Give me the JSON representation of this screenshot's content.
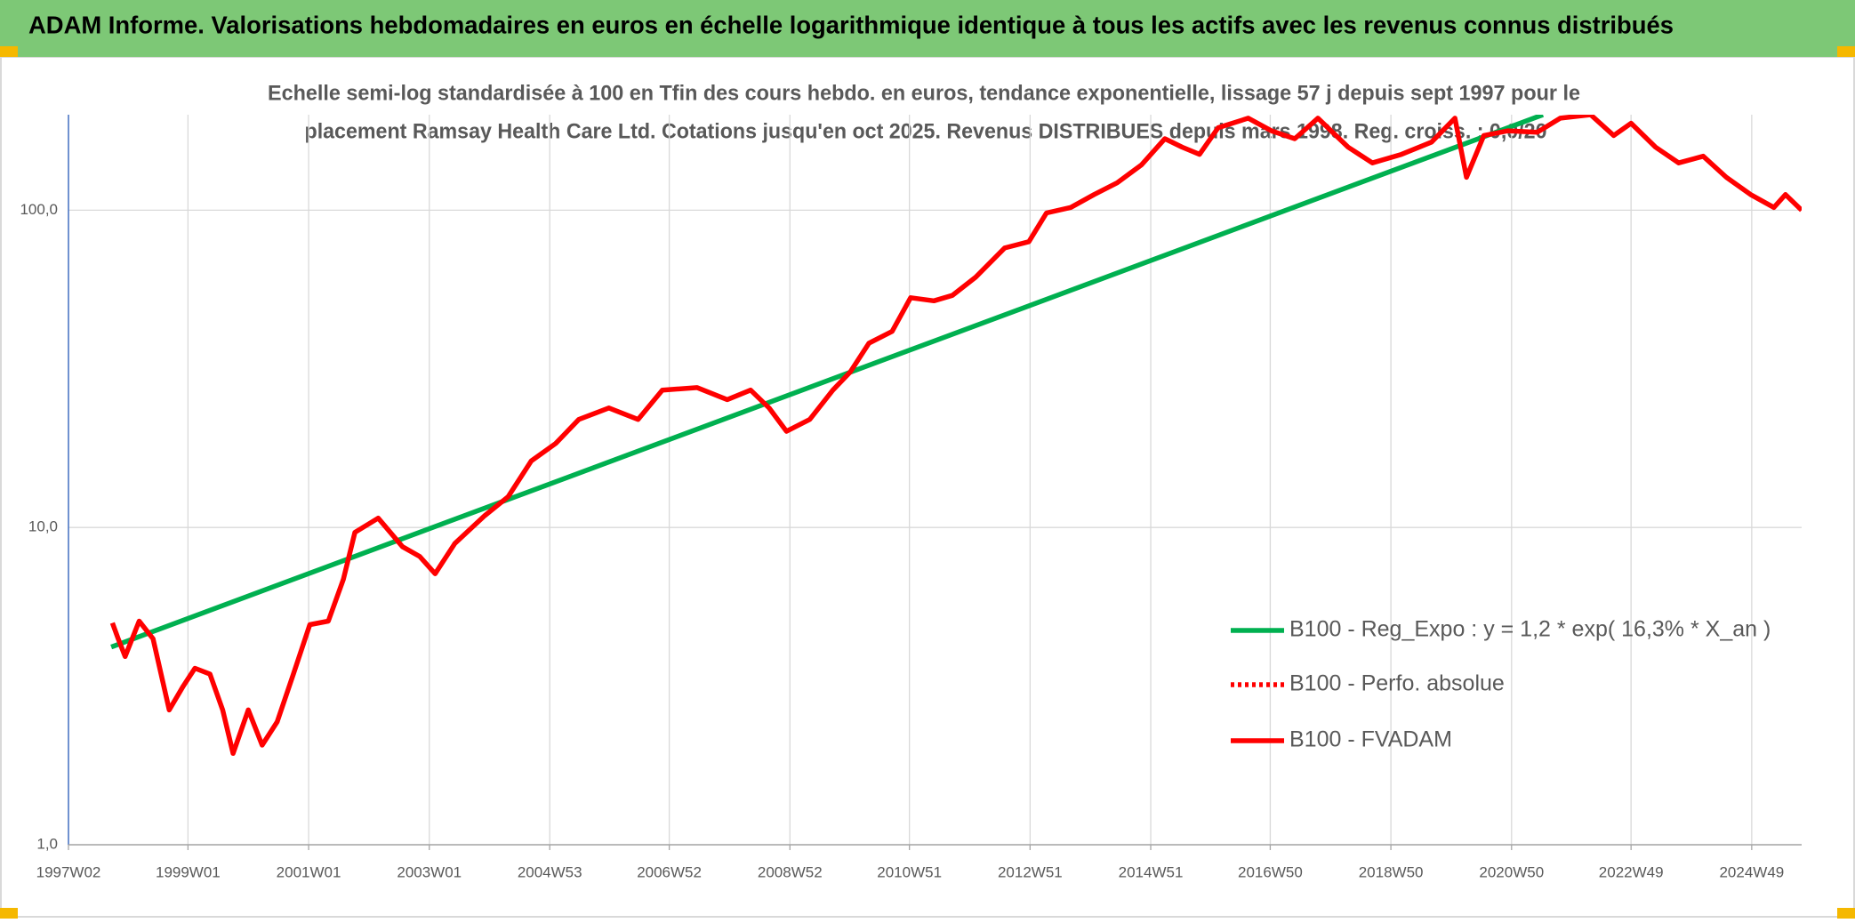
{
  "chart_data": {
    "type": "line",
    "title": "ADAM Informe. Valorisations hebdomadaires en euros en échelle logarithmique identique à tous les actifs avec les revenus connus distribués",
    "subtitle": [
      "Echelle semi-log standardisée à 100 en Tfin des cours hebdo. en euros, tendance exponentielle, lissage 57 j depuis sept 1997 pour le",
      "placement Ramsay Health Care Ltd. Cotations jusqu'en oct 2025. Revenus DISTRIBUES depuis mars 1998. Reg. croiss. : 0,0/20"
    ],
    "log_scale": true,
    "grid": true,
    "legend_position": "right",
    "ylim": [
      1,
      200
    ],
    "yticks": [
      {
        "value": 1,
        "label": "1,0"
      },
      {
        "value": 10,
        "label": "10,0"
      },
      {
        "value": 100,
        "label": "100,0"
      }
    ],
    "xlim": [
      "1997W02",
      "2025W40"
    ],
    "xticks": [
      "1997W02",
      "1999W01",
      "2001W01",
      "2003W01",
      "2004W53",
      "2006W52",
      "2008W52",
      "2010W51",
      "2012W51",
      "2014W51",
      "2016W50",
      "2018W50",
      "2020W50",
      "2022W49",
      "2024W49"
    ],
    "series": [
      {
        "name": "B100 - Reg_Expo : y = 1,2 * exp( 16,3% *  X_an )",
        "color": "#00b050",
        "style": "solid",
        "x": [
          "1997W39",
          "2021W25"
        ],
        "values": [
          4.2,
          200
        ]
      },
      {
        "name": "B100 - Perfo. absolue",
        "color": "#ff0000",
        "style": "dotted",
        "x": [],
        "values": []
      },
      {
        "name": "B100 - FVADAM",
        "color": "#ff0000",
        "style": "solid",
        "x": [
          "1997W40",
          "1997W45",
          "1997W51",
          "1998W11",
          "1998W23",
          "1998W37",
          "1998W49",
          "1999W07",
          "1999W20",
          "1999W31",
          "1999W40",
          "2000W01",
          "2000W13",
          "2000W26",
          "2000W40",
          "2001W02",
          "2001W18",
          "2001W31",
          "2001W41",
          "2002W09",
          "2002W30",
          "2002W45",
          "2003W06",
          "2003W23",
          "2003W49",
          "2004W17",
          "2004W37",
          "2005W06",
          "2005W26",
          "2005W52",
          "2006W25",
          "2006W46",
          "2007W24",
          "2007W50",
          "2008W18",
          "2008W34",
          "2008W49",
          "2009W17",
          "2009W37",
          "2009W52",
          "2010W16",
          "2010W36",
          "2010W52",
          "2011W20",
          "2011W36",
          "2012W04",
          "2012W29",
          "2012W50",
          "2013W13",
          "2013W34",
          "2014W02",
          "2014W22",
          "2014W43",
          "2015W11",
          "2015W26",
          "2015W41",
          "2016W05",
          "2016W31",
          "2016W51",
          "2017W19",
          "2017W39",
          "2018W13",
          "2018W34",
          "2019W07",
          "2019W33",
          "2020W01",
          "2020W11",
          "2020W26",
          "2020W47",
          "2021W20",
          "2021W40",
          "2022W14",
          "2022W34",
          "2022W49",
          "2023W18",
          "2023W38",
          "2024W07",
          "2024W27",
          "2024W48",
          "2025W16",
          "2025W26",
          "2025W40"
        ],
        "values": [
          5.0,
          4.46,
          3.92,
          5.07,
          4.46,
          2.66,
          3.16,
          3.6,
          3.45,
          2.66,
          1.94,
          2.66,
          2.06,
          2.44,
          3.45,
          4.94,
          5.07,
          6.86,
          9.65,
          10.7,
          8.7,
          8.1,
          7.15,
          8.9,
          10.9,
          12.5,
          16.2,
          18.4,
          21.9,
          23.8,
          21.9,
          27.1,
          27.6,
          25.3,
          27.1,
          23.8,
          20.1,
          21.9,
          27.1,
          30.9,
          38.1,
          41.5,
          53,
          51.8,
          53.9,
          61.5,
          76,
          79.6,
          98,
          102,
          112,
          122,
          139,
          168,
          158,
          150,
          182,
          195,
          178,
          168,
          195,
          158,
          141,
          150,
          164,
          195,
          127,
          172,
          178,
          176,
          195,
          200,
          172,
          188,
          158,
          141,
          148,
          127,
          112,
          102,
          112,
          100
        ]
      }
    ]
  }
}
